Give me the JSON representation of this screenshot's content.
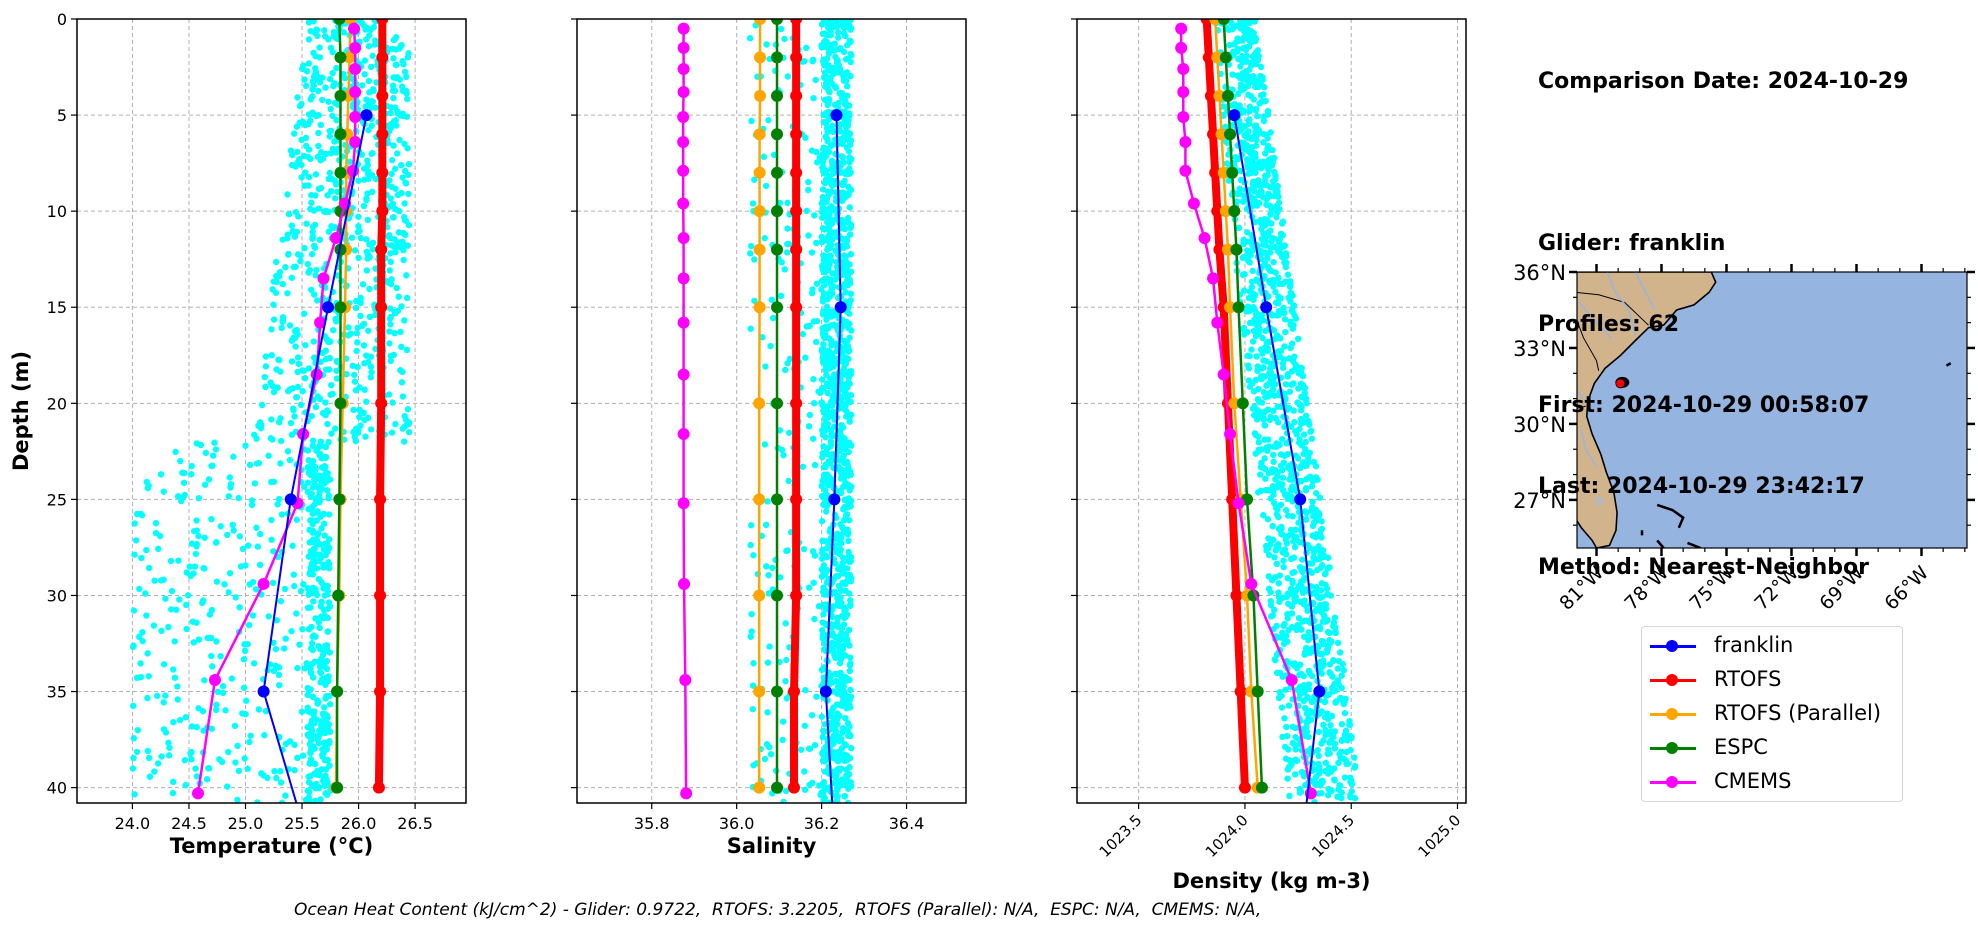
{
  "info": {
    "comparison_date": "Comparison Date: 2024-10-29",
    "glider": "Glider: franklin",
    "profiles": "Profiles: 62",
    "first": "First: 2024-10-29 00:58:07",
    "last": "Last: 2024-10-29 23:42:17",
    "method": "Method: Nearest-Neighbor"
  },
  "footer": "Ocean Heat Content (kJ/cm^2) - Glider: 0.9722,  RTOFS: 3.2205,  RTOFS (Parallel): N/A,  ESPC: N/A,  CMEMS: N/A,",
  "legend": [
    {
      "name": "franklin",
      "color": "#0000ff"
    },
    {
      "name": "RTOFS",
      "color": "#ff0000"
    },
    {
      "name": "RTOFS (Parallel)",
      "color": "#ffa500"
    },
    {
      "name": "ESPC",
      "color": "#008000"
    },
    {
      "name": "CMEMS",
      "color": "#ff00ff"
    }
  ],
  "chart_data": [
    {
      "type": "line",
      "title": "",
      "xlabel": "Temperature (°C)",
      "ylabel": "Depth (m)",
      "xlim": [
        23.51,
        26.95
      ],
      "ylim": [
        40.8,
        0
      ],
      "xticks": [
        24.0,
        24.5,
        25.0,
        25.5,
        26.0,
        26.5
      ],
      "xtick_labels": [
        "24.0",
        "24.5",
        "25.0",
        "25.5",
        "26.0",
        "26.5"
      ],
      "yticks": [
        0,
        5,
        10,
        15,
        20,
        25,
        30,
        35,
        40
      ],
      "grid": true,
      "scatter_cloud": {
        "name": "glider profiles",
        "color": "#00ffff",
        "depth_range": [
          0,
          40.8
        ],
        "value_range_surface": [
          25.6,
          26.45
        ],
        "value_range_deep": [
          24.0,
          26.4
        ]
      },
      "series": [
        {
          "name": "franklin",
          "color": "#0000ff",
          "depth": [
            5,
            15,
            25,
            35,
            40.8
          ],
          "values": [
            26.07,
            25.73,
            25.4,
            25.16,
            25.45
          ]
        },
        {
          "name": "RTOFS",
          "color": "#ff0000",
          "depth": [
            0,
            2,
            4,
            6,
            8,
            10,
            12,
            15,
            20,
            25,
            30,
            35,
            40
          ],
          "values": [
            26.21,
            26.21,
            26.21,
            26.21,
            26.21,
            26.21,
            26.2,
            26.2,
            26.2,
            26.19,
            26.19,
            26.19,
            26.18
          ]
        },
        {
          "name": "RTOFS (Parallel)",
          "color": "#ffa500",
          "depth": [
            0,
            2,
            4,
            6,
            8,
            10,
            12,
            15,
            20,
            25,
            30,
            35,
            40
          ],
          "values": [
            25.93,
            25.92,
            25.91,
            25.9,
            25.89,
            25.89,
            25.89,
            25.88,
            25.86,
            25.84,
            25.83,
            25.81,
            25.8
          ]
        },
        {
          "name": "ESPC",
          "color": "#008000",
          "depth": [
            0,
            2,
            4,
            6,
            8,
            10,
            12,
            15,
            20,
            25,
            30,
            35,
            40
          ],
          "values": [
            25.83,
            25.84,
            25.84,
            25.84,
            25.84,
            25.84,
            25.84,
            25.84,
            25.84,
            25.83,
            25.82,
            25.81,
            25.81
          ]
        },
        {
          "name": "CMEMS",
          "color": "#ff00ff",
          "depth": [
            0.5,
            1.5,
            2.6,
            3.8,
            5.1,
            6.4,
            7.9,
            9.6,
            11.4,
            13.5,
            15.8,
            18.5,
            21.6,
            25.2,
            29.4,
            34.4,
            40.3
          ],
          "values": [
            25.96,
            25.97,
            25.97,
            25.97,
            25.97,
            25.97,
            25.95,
            25.88,
            25.8,
            25.69,
            25.66,
            25.63,
            25.51,
            25.46,
            25.16,
            24.73,
            24.58
          ]
        }
      ]
    },
    {
      "type": "line",
      "title": "",
      "xlabel": "Salinity",
      "ylabel": "",
      "xlim": [
        35.624,
        36.54
      ],
      "ylim": [
        40.8,
        0
      ],
      "xticks": [
        35.8,
        36.0,
        36.2,
        36.4
      ],
      "xtick_labels": [
        "35.8",
        "36.0",
        "36.2",
        "36.4"
      ],
      "yticks": [
        0,
        5,
        10,
        15,
        20,
        25,
        30,
        35,
        40
      ],
      "grid": true,
      "scatter_cloud": {
        "name": "glider profiles",
        "color": "#00ffff",
        "depth_range": [
          0,
          40.8
        ],
        "value_range": [
          36.03,
          36.29
        ]
      },
      "series": [
        {
          "name": "franklin",
          "color": "#0000ff",
          "depth": [
            5,
            15,
            25,
            35,
            40.8
          ],
          "values": [
            36.235,
            36.245,
            36.23,
            36.21,
            36.225
          ]
        },
        {
          "name": "RTOFS",
          "color": "#ff0000",
          "depth": [
            0,
            2,
            4,
            6,
            8,
            10,
            12,
            15,
            20,
            25,
            30,
            35,
            40
          ],
          "values": [
            36.14,
            36.14,
            36.14,
            36.14,
            36.14,
            36.14,
            36.14,
            36.14,
            36.14,
            36.14,
            36.14,
            36.135,
            36.135
          ]
        },
        {
          "name": "RTOFS (Parallel)",
          "color": "#ffa500",
          "depth": [
            0,
            2,
            4,
            6,
            8,
            10,
            12,
            15,
            20,
            25,
            30,
            35,
            40
          ],
          "values": [
            36.055,
            36.055,
            36.055,
            36.054,
            36.054,
            36.054,
            36.054,
            36.054,
            36.053,
            36.053,
            36.053,
            36.053,
            36.053
          ]
        },
        {
          "name": "ESPC",
          "color": "#008000",
          "depth": [
            0,
            2,
            4,
            6,
            8,
            10,
            12,
            15,
            20,
            25,
            30,
            35,
            40
          ],
          "values": [
            36.095,
            36.095,
            36.095,
            36.095,
            36.095,
            36.095,
            36.095,
            36.095,
            36.095,
            36.095,
            36.095,
            36.095,
            36.095
          ]
        },
        {
          "name": "CMEMS",
          "color": "#ff00ff",
          "depth": [
            0.5,
            1.5,
            2.6,
            3.8,
            5.1,
            6.4,
            7.9,
            9.6,
            11.4,
            13.5,
            15.8,
            18.5,
            21.6,
            25.2,
            29.4,
            34.4,
            40.3
          ],
          "values": [
            35.875,
            35.875,
            35.875,
            35.875,
            35.874,
            35.874,
            35.874,
            35.874,
            35.875,
            35.875,
            35.875,
            35.875,
            35.875,
            35.875,
            35.876,
            35.879,
            35.881
          ]
        }
      ]
    },
    {
      "type": "line",
      "title": "",
      "xlabel": "Density (kg m-3)",
      "ylabel": "",
      "xlim": [
        1023.21,
        1025.04
      ],
      "ylim": [
        40.8,
        0
      ],
      "xticks": [
        1023.5,
        1024.0,
        1024.5,
        1025.0
      ],
      "xtick_labels": [
        "1023.5",
        "1024.0",
        "1024.5",
        "1025.0"
      ],
      "yticks": [
        0,
        5,
        10,
        15,
        20,
        25,
        30,
        35,
        40
      ],
      "grid": true,
      "scatter_cloud": {
        "name": "glider profiles",
        "color": "#00ffff",
        "depth_range": [
          0,
          40.8
        ],
        "value_range_surface": [
          1023.85,
          1024.05
        ],
        "value_range_deep": [
          1024.2,
          1024.55
        ]
      },
      "series": [
        {
          "name": "franklin",
          "color": "#0000ff",
          "depth": [
            5,
            15,
            25,
            35,
            40.8
          ],
          "values": [
            1023.95,
            1024.1,
            1024.26,
            1024.35,
            1024.29
          ]
        },
        {
          "name": "RTOFS",
          "color": "#ff0000",
          "depth": [
            0,
            2,
            4,
            6,
            8,
            10,
            12,
            15,
            20,
            25,
            30,
            35,
            40
          ],
          "values": [
            1023.82,
            1023.83,
            1023.84,
            1023.85,
            1023.86,
            1023.87,
            1023.88,
            1023.9,
            1023.92,
            1023.94,
            1023.96,
            1023.98,
            1024.0
          ]
        },
        {
          "name": "RTOFS (Parallel)",
          "color": "#ffa500",
          "depth": [
            0,
            2,
            4,
            6,
            8,
            10,
            12,
            15,
            20,
            25,
            30,
            35,
            40
          ],
          "values": [
            1023.86,
            1023.87,
            1023.88,
            1023.89,
            1023.9,
            1023.91,
            1023.92,
            1023.93,
            1023.95,
            1023.98,
            1024.01,
            1024.03,
            1024.06
          ]
        },
        {
          "name": "ESPC",
          "color": "#008000",
          "depth": [
            0,
            2,
            4,
            6,
            8,
            10,
            12,
            15,
            20,
            25,
            30,
            35,
            40
          ],
          "values": [
            1023.9,
            1023.91,
            1023.92,
            1023.93,
            1023.94,
            1023.95,
            1023.96,
            1023.97,
            1023.99,
            1024.01,
            1024.04,
            1024.06,
            1024.08
          ]
        },
        {
          "name": "CMEMS",
          "color": "#ff00ff",
          "depth": [
            0.5,
            1.5,
            2.6,
            3.8,
            5.1,
            6.4,
            7.9,
            9.6,
            11.4,
            13.5,
            15.8,
            18.5,
            21.6,
            25.2,
            29.4,
            34.4,
            40.3
          ],
          "values": [
            1023.7,
            1023.7,
            1023.71,
            1023.71,
            1023.71,
            1023.72,
            1023.72,
            1023.76,
            1023.81,
            1023.85,
            1023.87,
            1023.9,
            1023.93,
            1023.97,
            1024.03,
            1024.22,
            1024.31
          ]
        }
      ]
    },
    {
      "type": "scatter",
      "title": "",
      "xlabel": "",
      "ylabel": "",
      "xlim": [
        -81.9,
        -63.9
      ],
      "ylim": [
        25.1,
        36.0
      ],
      "xticks": [
        -81,
        -78,
        -75,
        -72,
        -69,
        -66
      ],
      "xtick_labels": [
        "81°W",
        "78°W",
        "75°W",
        "72°W",
        "69°W",
        "66°W"
      ],
      "yticks": [
        27,
        30,
        33,
        36
      ],
      "ytick_labels": [
        "27°N",
        "30°N",
        "33°N",
        "36°N"
      ],
      "land_color": "#d2b48c",
      "ocean_color": "#96b4e0",
      "points": [
        {
          "name": "franklin track",
          "lon": -79.9,
          "lat": 31.6,
          "color": "#ff0000"
        }
      ]
    }
  ]
}
